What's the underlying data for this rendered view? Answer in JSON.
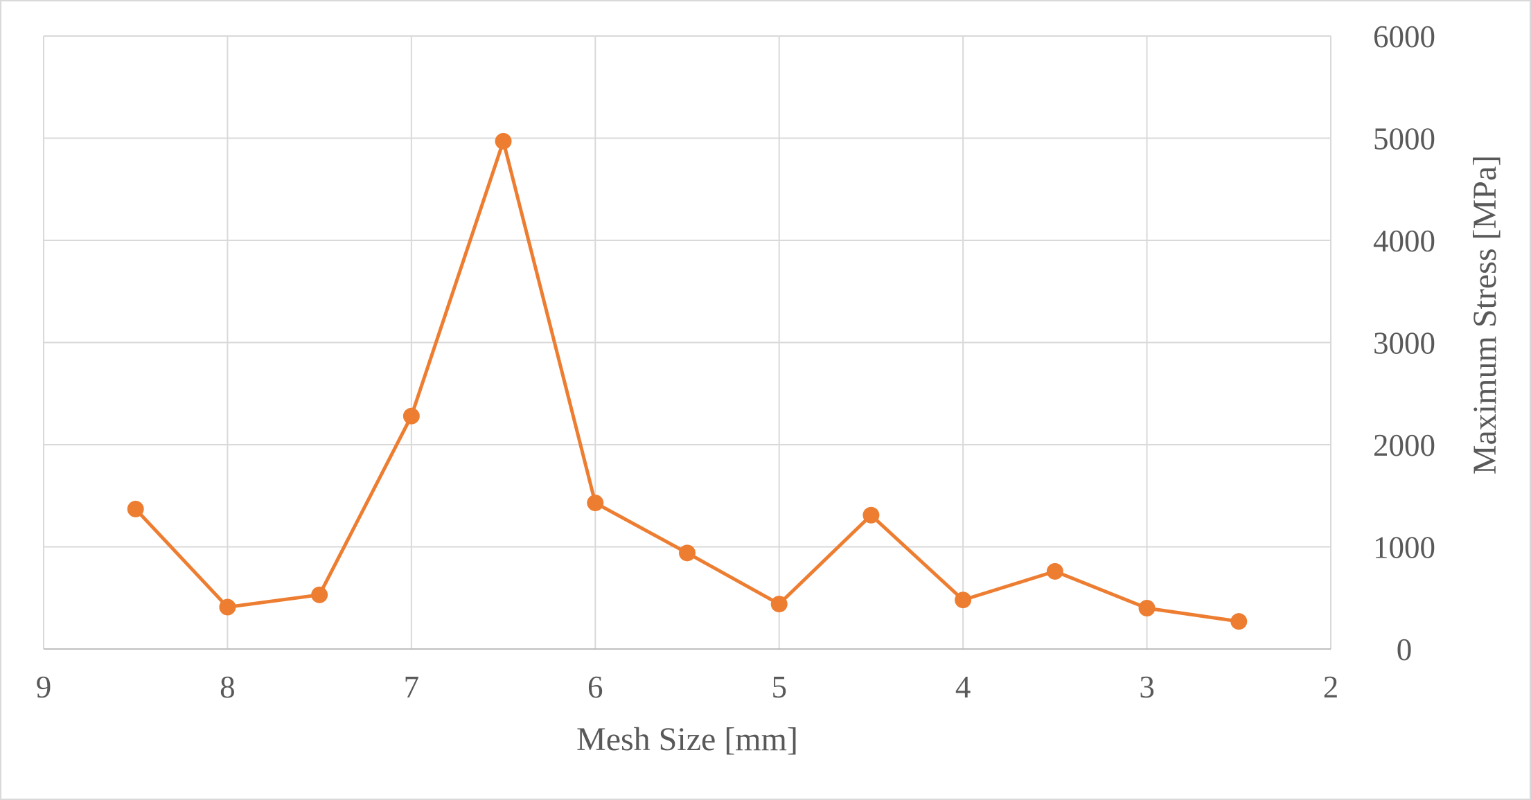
{
  "chart_data": {
    "type": "scatter",
    "title": "",
    "xlabel": "Mesh Size [mm]",
    "ylabel": "Maximum Stress [MPa]",
    "x_reversed": true,
    "xlim": [
      2,
      9
    ],
    "ylim": [
      0,
      6000
    ],
    "x_ticks": [
      "9",
      "8",
      "7",
      "6",
      "5",
      "4",
      "3",
      "2"
    ],
    "y_ticks": [
      "0",
      "1000",
      "2000",
      "3000",
      "4000",
      "5000",
      "6000"
    ],
    "y_axis_position": "right",
    "grid": true,
    "legend": "none",
    "series": [
      {
        "color": "#ED7D31",
        "lines": true,
        "markers": true,
        "x": [
          8.5,
          8,
          7.5,
          7,
          6.5,
          6,
          5.5,
          5,
          4.5,
          4,
          3.5,
          3,
          2.5
        ],
        "y": [
          1370,
          410,
          530,
          2280,
          4970,
          1430,
          940,
          440,
          1310,
          480,
          760,
          400,
          270
        ]
      }
    ]
  }
}
